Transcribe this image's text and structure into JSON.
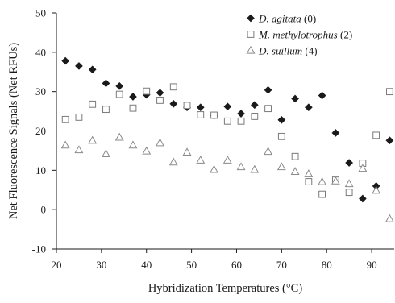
{
  "chart_data": {
    "type": "scatter",
    "xlabel": "Hybridization Temperatures (°C)",
    "ylabel": "Net Fluorescence Signals (Net RFUs)",
    "xlim": [
      20,
      95
    ],
    "ylim": [
      -10,
      50
    ],
    "xticks": [
      20,
      30,
      40,
      50,
      60,
      70,
      80,
      90
    ],
    "yticks": [
      -10,
      0,
      10,
      20,
      30,
      40,
      50
    ],
    "x_tick_labels": [
      "20",
      "30",
      "40",
      "50",
      "60",
      "70",
      "80",
      "90"
    ],
    "y_tick_labels": [
      "-10",
      "0",
      "10",
      "20",
      "30",
      "40",
      "50"
    ],
    "grid": false,
    "legend_position": "top-right",
    "x": [
      22,
      25,
      28,
      31,
      34,
      37,
      40,
      43,
      46,
      49,
      52,
      55,
      58,
      61,
      64,
      67,
      70,
      73,
      76,
      79,
      82,
      85,
      88,
      91,
      94
    ],
    "series": [
      {
        "name": "D. agitata",
        "name_suffix": " (0)",
        "marker": "diamond",
        "color": "#1a1a1a",
        "values": [
          37.8,
          36.5,
          35.6,
          32.1,
          31.4,
          28.7,
          29.2,
          29.7,
          26.9,
          26.0,
          26.0,
          23.9,
          26.2,
          24.4,
          26.6,
          30.4,
          22.8,
          28.2,
          26.0,
          29.0,
          19.5,
          11.9,
          2.8,
          6.0,
          17.6
        ]
      },
      {
        "name": "M. methylotrophus",
        "name_suffix": " (2)",
        "marker": "square",
        "color": "#7a7a7a",
        "values": [
          22.9,
          23.5,
          26.8,
          25.5,
          29.3,
          25.8,
          30.1,
          27.8,
          31.2,
          26.5,
          24.1,
          24.0,
          22.5,
          22.5,
          23.7,
          25.7,
          18.6,
          13.5,
          7.1,
          3.9,
          7.5,
          4.4,
          11.8,
          18.9,
          30.0
        ]
      },
      {
        "name": "D. suillum",
        "name_suffix": " (4)",
        "marker": "triangle",
        "color": "#8a8a8a",
        "values": [
          16.4,
          15.2,
          17.6,
          14.2,
          18.4,
          16.4,
          14.9,
          17.0,
          12.1,
          14.6,
          12.6,
          10.2,
          12.6,
          10.9,
          10.2,
          14.8,
          10.9,
          9.7,
          9.1,
          7.1,
          7.3,
          6.6,
          10.5,
          4.9,
          -2.3
        ]
      }
    ]
  }
}
